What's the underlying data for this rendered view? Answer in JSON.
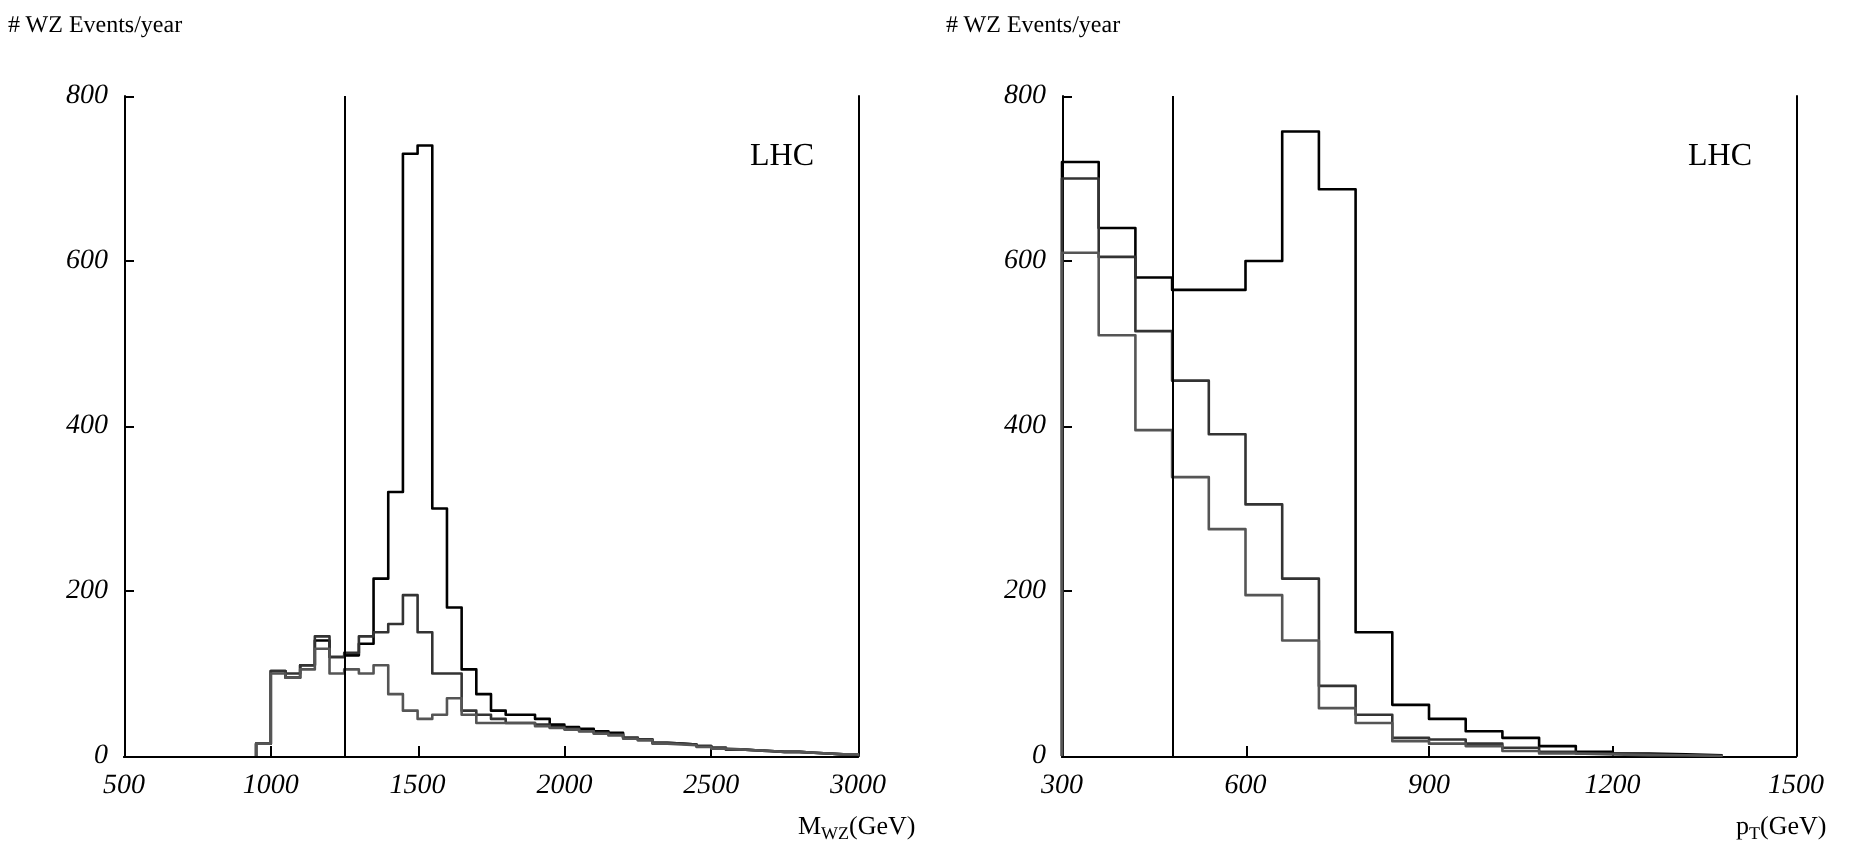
{
  "chart_data": [
    {
      "type": "histogram",
      "ylabel": "# WZ Events/year",
      "xlabel": "M$_{WZ}$(GeV)",
      "annotations": [
        "LHC"
      ],
      "xlim": [
        500,
        3000
      ],
      "xticks": [
        500,
        1000,
        1500,
        2000,
        2500,
        3000
      ],
      "ylim": [
        0,
        800
      ],
      "yticks": [
        0,
        200,
        400,
        600,
        800
      ],
      "bins": [
        950,
        1000,
        1050,
        1100,
        1150,
        1200,
        1250,
        1300,
        1350,
        1400,
        1450,
        1500,
        1550,
        1600,
        1650,
        1700,
        1750,
        1800,
        1850,
        1900,
        1950,
        2000,
        2050,
        2100,
        2150,
        2200,
        2250,
        2300,
        2350,
        2400,
        2450,
        2500,
        2550,
        2600,
        2650,
        2700,
        2750,
        2800,
        2850,
        2900,
        2950,
        3000
      ],
      "series": [
        {
          "color": "#000000",
          "values": [
            15,
            103,
            95,
            110,
            140,
            120,
            122,
            136,
            215,
            320,
            730,
            740,
            300,
            180,
            105,
            75,
            55,
            50,
            50,
            45,
            38,
            35,
            33,
            30,
            28,
            22,
            20,
            16,
            15,
            14,
            12,
            10,
            8,
            7,
            6,
            5,
            5,
            4,
            3,
            2,
            2
          ]
        },
        {
          "color": "#333333",
          "values": [
            15,
            103,
            100,
            110,
            145,
            120,
            125,
            145,
            150,
            160,
            195,
            150,
            100,
            100,
            55,
            50,
            45,
            40,
            40,
            38,
            35,
            33,
            30,
            28,
            26,
            22,
            20,
            16,
            15,
            14,
            12,
            10,
            8,
            7,
            6,
            5,
            5,
            4,
            3,
            2,
            2
          ]
        },
        {
          "color": "#555555",
          "values": [
            15,
            100,
            95,
            105,
            130,
            100,
            105,
            100,
            110,
            75,
            55,
            45,
            50,
            70,
            50,
            40,
            40,
            40,
            40,
            36,
            34,
            32,
            30,
            27,
            25,
            21,
            19,
            15,
            14,
            13,
            11,
            9,
            8,
            7,
            6,
            5,
            5,
            4,
            3,
            2,
            2
          ]
        }
      ],
      "ref_lines": [
        {
          "axis": "x",
          "value": 1250,
          "color": "#000000"
        }
      ]
    },
    {
      "type": "histogram",
      "ylabel": "# WZ Events/year",
      "xlabel": "p$_{T}$(GeV)",
      "annotations": [
        "LHC"
      ],
      "xlim": [
        300,
        1500
      ],
      "xticks": [
        300,
        600,
        900,
        1200,
        1500
      ],
      "ylim": [
        0,
        800
      ],
      "yticks": [
        0,
        200,
        400,
        600,
        800
      ],
      "bins": [
        300,
        360,
        420,
        480,
        540,
        600,
        660,
        720,
        780,
        840,
        900,
        960,
        1020,
        1080,
        1140,
        1200,
        1260,
        1320,
        1380
      ],
      "series": [
        {
          "color": "#000000",
          "values": [
            720,
            640,
            580,
            565,
            565,
            600,
            757,
            687,
            150,
            62,
            45,
            30,
            22,
            12,
            5,
            3,
            2,
            1
          ]
        },
        {
          "color": "#333333",
          "values": [
            700,
            605,
            515,
            455,
            390,
            305,
            215,
            85,
            50,
            22,
            20,
            15,
            10,
            5,
            3,
            2,
            1,
            0
          ]
        },
        {
          "color": "#555555",
          "values": [
            610,
            510,
            395,
            338,
            275,
            195,
            140,
            58,
            40,
            18,
            15,
            12,
            6,
            3,
            2,
            1,
            1,
            0
          ]
        }
      ],
      "ref_lines": [
        {
          "axis": "x",
          "value": 480,
          "color": "#000000"
        }
      ]
    }
  ]
}
